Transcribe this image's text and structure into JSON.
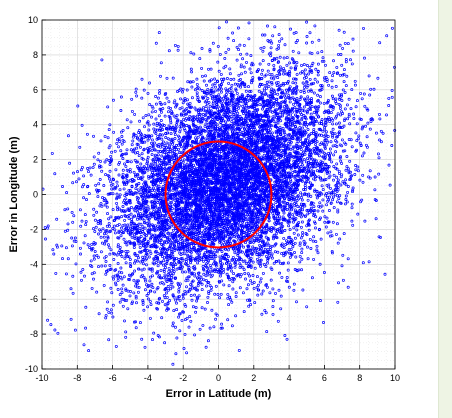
{
  "chart_data": {
    "type": "scatter",
    "title": "",
    "xlabel": "Error in Latitude (m)",
    "ylabel": "Error in Longitude (m)",
    "xlim": [
      -10,
      10
    ],
    "ylim": [
      -10,
      10
    ],
    "xticks": [
      -10,
      -8,
      -6,
      -4,
      -2,
      0,
      2,
      4,
      6,
      8,
      10
    ],
    "yticks": [
      -10,
      -8,
      -6,
      -4,
      -2,
      0,
      2,
      4,
      6,
      8,
      10
    ],
    "grid": true,
    "legend": "none",
    "series": [
      {
        "marker": "open-circle",
        "color": "#0000ff",
        "distribution": {
          "kind": "bivariate-normal",
          "mean": [
            0.5,
            0.8
          ],
          "std": [
            3.3,
            3.1
          ],
          "correlation": 0.35
        }
      }
    ],
    "overlays": [
      {
        "shape": "circle",
        "center": [
          0,
          0
        ],
        "radius": 3,
        "color": "#ff0000"
      }
    ]
  }
}
